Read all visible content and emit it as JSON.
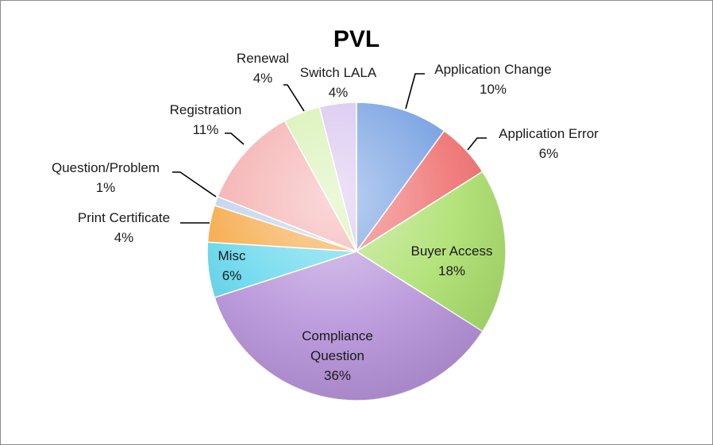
{
  "chart_data": {
    "type": "pie",
    "title": "PVL",
    "slices": [
      {
        "label": "Application Change",
        "value": 10,
        "value_label": "10%",
        "color": "#6e9be0"
      },
      {
        "label": "Application Error",
        "value": 6,
        "value_label": "6%",
        "color": "#ef6c6c"
      },
      {
        "label": "Buyer Access",
        "value": 18,
        "value_label": "18%",
        "color": "#aadf6a"
      },
      {
        "label": "Compliance Question",
        "value": 36,
        "value_label": "36%",
        "color": "#b692da"
      },
      {
        "label": "Misc",
        "value": 6,
        "value_label": "6%",
        "color": "#5fd6ec"
      },
      {
        "label": "Print Certificate",
        "value": 4,
        "value_label": "4%",
        "color": "#f5a743"
      },
      {
        "label": "Question/Problem",
        "value": 1,
        "value_label": "1%",
        "color": "#bcd0ec"
      },
      {
        "label": "Registration",
        "value": 11,
        "value_label": "11%",
        "color": "#f4aaaa"
      },
      {
        "label": "Renewal",
        "value": 4,
        "value_label": "4%",
        "color": "#d5f0ad"
      },
      {
        "label": "Switch LALA",
        "value": 4,
        "value_label": "4%",
        "color": "#d6c1ee"
      }
    ]
  }
}
